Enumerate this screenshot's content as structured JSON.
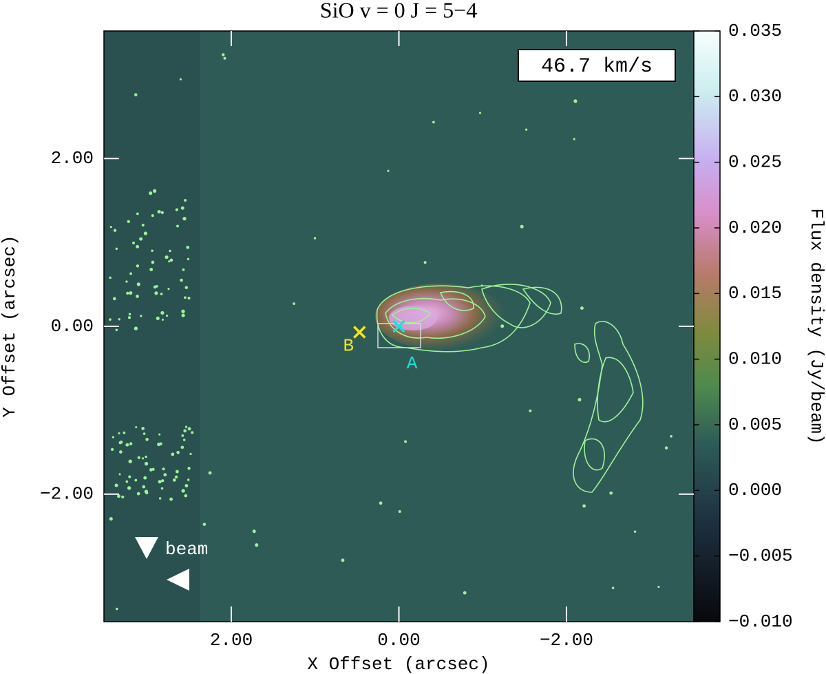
{
  "chart_data": {
    "type": "image",
    "title": "SiO  v = 0  J = 5−4",
    "xlabel": "X Offset (arcsec)",
    "ylabel": "Y Offset (arcsec)",
    "colorbar_label": "Flux density (Jy/beam)",
    "annotations": [
      "46.7 km/s",
      "beam"
    ],
    "xlim": [
      3.52,
      -3.52
    ],
    "ylim": [
      -3.52,
      3.52
    ],
    "xticks": [
      {
        "value": 2,
        "label": "2.00"
      },
      {
        "value": 0,
        "label": "0.00"
      },
      {
        "value": -2,
        "label": "−2.00"
      }
    ],
    "yticks": [
      {
        "value": 2,
        "label": "2.00"
      },
      {
        "value": 0,
        "label": "0.00"
      },
      {
        "value": -2,
        "label": "−2.00"
      }
    ],
    "clim": [
      -0.01,
      0.035
    ],
    "cticks": [
      0.035,
      {
        "value": 0.03,
        "label": "0.030"
      },
      0.025,
      {
        "value": 0.02,
        "label": "0.020"
      },
      0.015,
      {
        "value": 0.01,
        "label": "0.010"
      },
      0.005,
      {
        "value": 0,
        "label": "0.000"
      },
      {
        "value": -0.005,
        "label": "−0.005"
      },
      {
        "value": -0.01,
        "label": "−0.010"
      }
    ],
    "markers": [
      {
        "label": "A",
        "x": 0,
        "y": 0,
        "color": "#19e0e0"
      },
      {
        "label": "B",
        "x": 0.47,
        "y": -0.07,
        "color": "#f5e61a"
      }
    ]
  }
}
